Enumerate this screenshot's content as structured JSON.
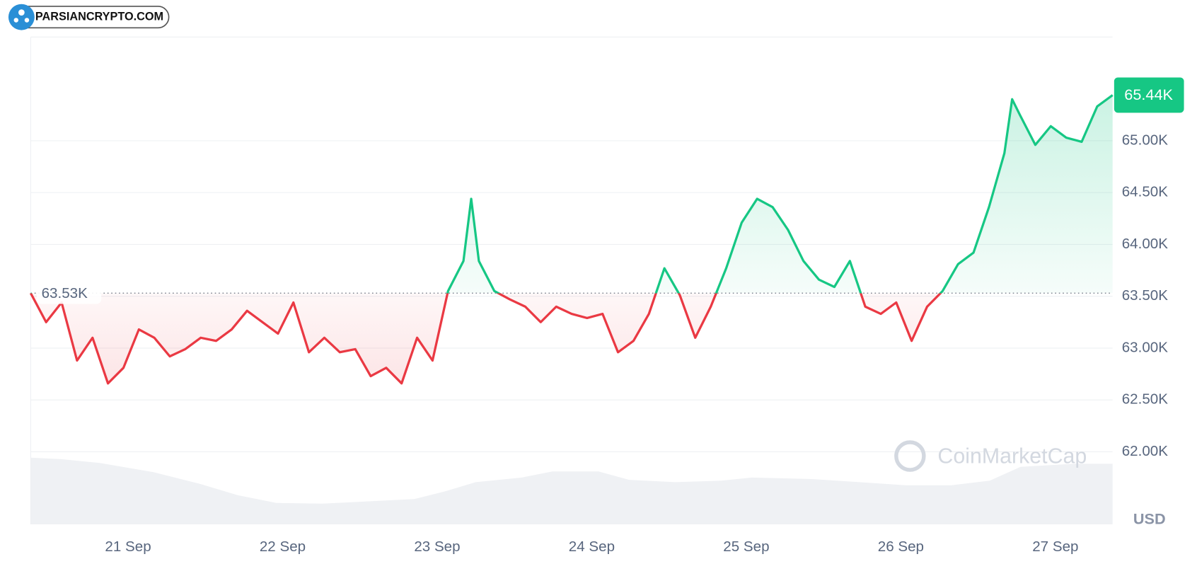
{
  "logo": "PARSIANCRYPTO.COM",
  "watermark": "CoinMarketCap",
  "chart_data": {
    "type": "line",
    "y_axis_label": "USD",
    "x": [
      20.37,
      20.47,
      20.57,
      20.67,
      20.77,
      20.87,
      20.97,
      21.07,
      21.17,
      21.27,
      21.37,
      21.47,
      21.57,
      21.67,
      21.77,
      21.87,
      21.97,
      22.07,
      22.17,
      22.27,
      22.37,
      22.47,
      22.57,
      22.67,
      22.77,
      22.87,
      22.97,
      23.07,
      23.17,
      23.22,
      23.27,
      23.37,
      23.47,
      23.57,
      23.67,
      23.77,
      23.87,
      23.97,
      24.07,
      24.17,
      24.27,
      24.37,
      24.47,
      24.57,
      24.67,
      24.77,
      24.87,
      24.97,
      25.07,
      25.17,
      25.27,
      25.37,
      25.47,
      25.57,
      25.67,
      25.77,
      25.87,
      25.97,
      26.07,
      26.17,
      26.27,
      26.37,
      26.47,
      26.57,
      26.67,
      26.72,
      26.77,
      26.87,
      26.97,
      27.07,
      27.17,
      27.27,
      27.37
    ],
    "values": [
      63530,
      63250,
      63440,
      62880,
      63100,
      62660,
      62810,
      63180,
      63100,
      62920,
      62990,
      63100,
      63070,
      63180,
      63360,
      63250,
      63140,
      63440,
      62960,
      63100,
      62960,
      62990,
      62730,
      62810,
      62660,
      63100,
      62880,
      63550,
      63840,
      64440,
      63840,
      63550,
      63470,
      63400,
      63250,
      63400,
      63330,
      63290,
      63330,
      62960,
      63070,
      63330,
      63770,
      63510,
      63100,
      63400,
      63770,
      64210,
      64440,
      64360,
      64140,
      63840,
      63660,
      63590,
      63840,
      63400,
      63330,
      63440,
      63070,
      63400,
      63550,
      63810,
      63920,
      64360,
      64880,
      65400,
      65250,
      64960,
      65140,
      65030,
      64990,
      65330,
      65440
    ],
    "up_color": "#16c784",
    "down_color": "#ea3943",
    "baseline": {
      "value": 63530,
      "label": "63.53K"
    },
    "current_price": {
      "value": 65440,
      "label": "65.44K"
    },
    "xlim": [
      20.37,
      27.37
    ],
    "xticks": [
      {
        "value": 21,
        "label": "21 Sep"
      },
      {
        "value": 22,
        "label": "22 Sep"
      },
      {
        "value": 23,
        "label": "23 Sep"
      },
      {
        "value": 24,
        "label": "24 Sep"
      },
      {
        "value": 25,
        "label": "25 Sep"
      },
      {
        "value": 26,
        "label": "26 Sep"
      },
      {
        "value": 27,
        "label": "27 Sep"
      }
    ],
    "ylim": [
      61300,
      66000
    ],
    "yticks": [
      {
        "value": 62000,
        "label": "62.00K"
      },
      {
        "value": 62500,
        "label": "62.50K"
      },
      {
        "value": 63000,
        "label": "63.00K"
      },
      {
        "value": 63500,
        "label": "63.50K"
      },
      {
        "value": 64000,
        "label": "64.00K"
      },
      {
        "value": 64500,
        "label": "64.50K"
      },
      {
        "value": 65000,
        "label": "65.00K"
      }
    ],
    "grid": true
  }
}
